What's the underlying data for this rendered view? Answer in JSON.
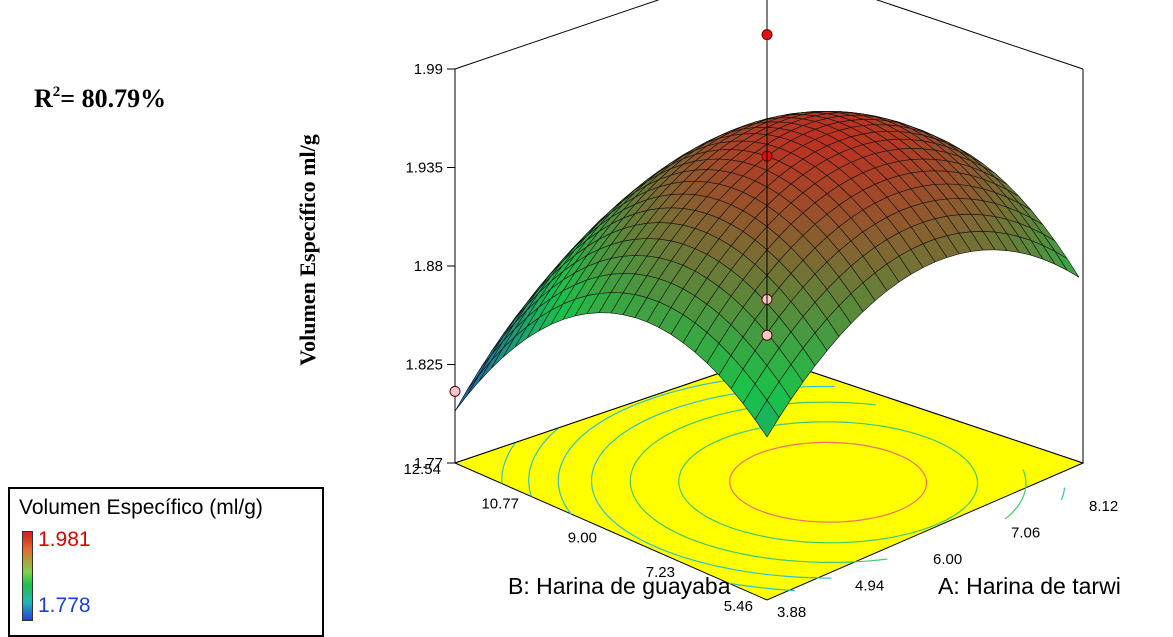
{
  "annotation": {
    "r2_label": "R",
    "r2_superscript": "2",
    "r2_value": "= 80.79%"
  },
  "legend": {
    "title": "Volumen Específico (ml/g)",
    "max_label": "1.981",
    "min_label": "1.778",
    "max_color": "#e00000",
    "min_color": "#1a3fe0"
  },
  "chart_data": {
    "type": "surface",
    "zlabel": "Volumen Específico ml/g",
    "xlabel": "A: Harina de tarwi",
    "ylabel": "B: Harina de guayaba",
    "z_ticks": [
      "1.99",
      "1.935",
      "1.88",
      "1.825",
      "1.77"
    ],
    "x_ticks": [
      "3.88",
      "4.94",
      "6.00",
      "7.06",
      "8.12"
    ],
    "y_ticks": [
      "5.46",
      "7.23",
      "9.00",
      "10.77",
      "12.54"
    ],
    "xlim": [
      3.88,
      8.12
    ],
    "ylim": [
      5.46,
      12.54
    ],
    "zlim": [
      1.77,
      1.99
    ],
    "surface_range": [
      1.778,
      1.981
    ],
    "floor_color": "#ffff00",
    "colors": {
      "high": "#d7191c",
      "mid": "#19c34a",
      "low": "#1f3fe0"
    },
    "design_points": [
      {
        "A": 3.88,
        "B": 12.54,
        "value": 1.81,
        "above_surface": false
      },
      {
        "A": 6.0,
        "B": 9.0,
        "value": 1.95,
        "above_surface": true
      },
      {
        "A": 6.0,
        "B": 9.0,
        "value": 1.87,
        "above_surface": false
      },
      {
        "A": 6.0,
        "B": 9.0,
        "value": 1.85,
        "above_surface": false
      },
      {
        "A": 8.12,
        "B": 12.54,
        "value": 1.95,
        "above_surface": true
      }
    ]
  }
}
